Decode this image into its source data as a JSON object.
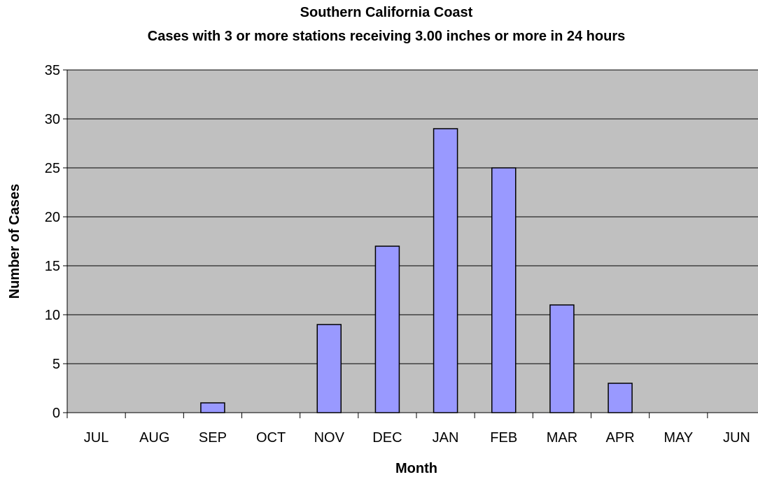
{
  "chart_data": {
    "type": "bar",
    "title": "Southern California Coast",
    "subtitle": "Cases with 3 or more stations receiving 3.00 inches or more in 24 hours",
    "xlabel": "Month",
    "ylabel": "Number of Cases",
    "categories": [
      "JUL",
      "AUG",
      "SEP",
      "OCT",
      "NOV",
      "DEC",
      "JAN",
      "FEB",
      "MAR",
      "APR",
      "MAY",
      "JUN"
    ],
    "values": [
      0,
      0,
      1,
      0,
      9,
      17,
      29,
      25,
      11,
      3,
      0,
      0
    ],
    "ylim": [
      0,
      35
    ],
    "yticks": [
      0,
      5,
      10,
      15,
      20,
      25,
      30,
      35
    ],
    "grid": true,
    "legend": "none",
    "colors": {
      "plot_background": "#c0c0c0",
      "bar_fill": "#9999ff",
      "bar_stroke": "#000000",
      "grid": "#000000"
    }
  }
}
